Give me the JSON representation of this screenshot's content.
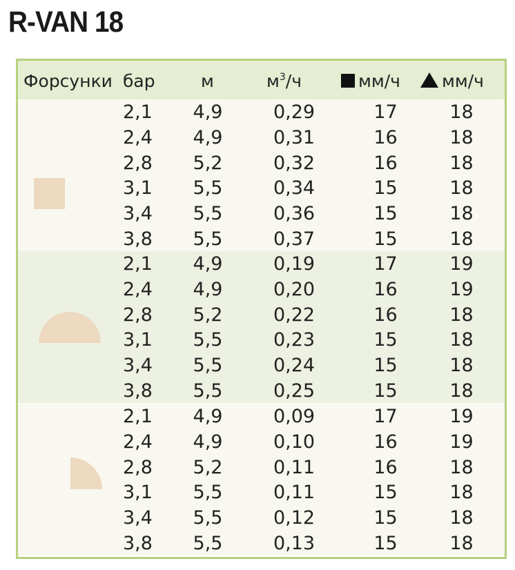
{
  "title": "R-VAN 18",
  "header": {
    "nozzles": "Форсунки",
    "bar": "бар",
    "m": "м",
    "flow_base": "м",
    "flow_sup": "3",
    "flow_tail": "/ч",
    "square_unit": "мм/ч",
    "triangle_unit": "мм/ч"
  },
  "icons": {
    "square": "square-icon",
    "triangle": "triangle-icon",
    "nozzle_fill": "#ecd9bf"
  },
  "groups": [
    {
      "nozzle": "three-quarter-circle",
      "rows": [
        {
          "bar": "2,1",
          "m": "4,9",
          "flow": "0,29",
          "sq": "17",
          "tr": "18"
        },
        {
          "bar": "2,4",
          "m": "4,9",
          "flow": "0,31",
          "sq": "16",
          "tr": "18"
        },
        {
          "bar": "2,8",
          "m": "5,2",
          "flow": "0,32",
          "sq": "16",
          "tr": "18"
        },
        {
          "bar": "3,1",
          "m": "5,5",
          "flow": "0,34",
          "sq": "15",
          "tr": "18"
        },
        {
          "bar": "3,4",
          "m": "5,5",
          "flow": "0,36",
          "sq": "15",
          "tr": "18"
        },
        {
          "bar": "3,8",
          "m": "5,5",
          "flow": "0,37",
          "sq": "15",
          "tr": "18"
        }
      ]
    },
    {
      "nozzle": "half-circle",
      "rows": [
        {
          "bar": "2,1",
          "m": "4,9",
          "flow": "0,19",
          "sq": "17",
          "tr": "19"
        },
        {
          "bar": "2,4",
          "m": "4,9",
          "flow": "0,20",
          "sq": "16",
          "tr": "19"
        },
        {
          "bar": "2,8",
          "m": "5,2",
          "flow": "0,22",
          "sq": "16",
          "tr": "18"
        },
        {
          "bar": "3,1",
          "m": "5,5",
          "flow": "0,23",
          "sq": "15",
          "tr": "18"
        },
        {
          "bar": "3,4",
          "m": "5,5",
          "flow": "0,24",
          "sq": "15",
          "tr": "18"
        },
        {
          "bar": "3,8",
          "m": "5,5",
          "flow": "0,25",
          "sq": "15",
          "tr": "18"
        }
      ]
    },
    {
      "nozzle": "quarter-circle",
      "rows": [
        {
          "bar": "2,1",
          "m": "4,9",
          "flow": "0,09",
          "sq": "17",
          "tr": "19"
        },
        {
          "bar": "2,4",
          "m": "4,9",
          "flow": "0,10",
          "sq": "16",
          "tr": "19"
        },
        {
          "bar": "2,8",
          "m": "5,2",
          "flow": "0,11",
          "sq": "16",
          "tr": "18"
        },
        {
          "bar": "3,1",
          "m": "5,5",
          "flow": "0,11",
          "sq": "15",
          "tr": "18"
        },
        {
          "bar": "3,4",
          "m": "5,5",
          "flow": "0,12",
          "sq": "15",
          "tr": "18"
        },
        {
          "bar": "3,8",
          "m": "5,5",
          "flow": "0,13",
          "sq": "15",
          "tr": "18"
        }
      ]
    }
  ]
}
